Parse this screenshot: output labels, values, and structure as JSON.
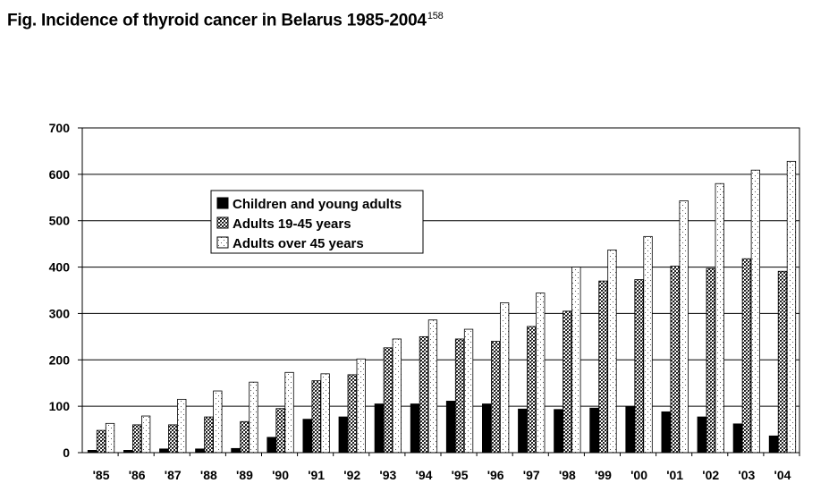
{
  "title": "Fig. Incidence of thyroid cancer in Belarus 1985-2004",
  "title_ref": "158",
  "chart_data": {
    "type": "bar",
    "categories": [
      "'85",
      "'86",
      "'87",
      "'88",
      "'89",
      "'90",
      "'91",
      "'92",
      "'93",
      "'94",
      "'95",
      "'96",
      "'97",
      "'98",
      "'99",
      "'00",
      "'01",
      "'02",
      "'03",
      "'04"
    ],
    "series": [
      {
        "name": "Children and young adults",
        "pattern": "solid",
        "values": [
          5,
          5,
          8,
          8,
          9,
          33,
          72,
          77,
          105,
          105,
          111,
          105,
          94,
          93,
          96,
          99,
          88,
          77,
          62,
          36
        ]
      },
      {
        "name": "Adults 19-45 years",
        "pattern": "crosshatch",
        "values": [
          48,
          60,
          60,
          77,
          67,
          95,
          155,
          168,
          226,
          250,
          245,
          240,
          272,
          305,
          370,
          373,
          402,
          397,
          418,
          391
        ]
      },
      {
        "name": "Adults over 45 years",
        "pattern": "dotted",
        "values": [
          63,
          79,
          115,
          133,
          152,
          173,
          170,
          202,
          245,
          286,
          266,
          323,
          344,
          400,
          437,
          466,
          543,
          580,
          609,
          628
        ]
      }
    ],
    "ylim": [
      0,
      700
    ],
    "yticks": [
      0,
      100,
      200,
      300,
      400,
      500,
      600,
      700
    ],
    "grid": true,
    "legend_position": "upper-left"
  },
  "colors": {
    "bar_fill_light": "#ffffff",
    "bar_stroke": "#000000",
    "grid": "#000000"
  }
}
